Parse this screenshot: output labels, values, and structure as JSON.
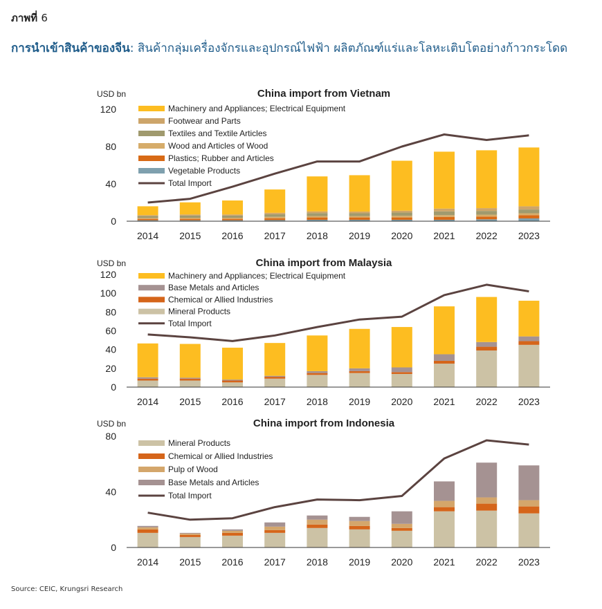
{
  "figure_label": {
    "prefix": "ภาพที่",
    "number": "6"
  },
  "headline": {
    "bold": "การนำเข้าสินค้าของจีน",
    "rest": ": สินค้ากลุ่มเครื่องจักรและอุปกรณ์ไฟฟ้า ผลิตภัณฑ์แร่และโลหะเติบโตอย่างก้าวกระโดด"
  },
  "source": "Source: CEIC, Krungsri Research",
  "colors": {
    "machinery": "#FDBD21",
    "footwear": "#CDA56A",
    "textiles": "#A09A6E",
    "wood_articles": "#D6AC6A",
    "plastics": "#D86A16",
    "vegetable": "#7FA0AE",
    "base_metals": "#A59292",
    "chemical": "#D5651A",
    "mineral": "#CCC2A5",
    "pulp": "#D4A66B",
    "total_line": "#5B4340"
  },
  "chart_data": [
    {
      "type": "bar",
      "stacked": true,
      "title": "China import from Vietnam",
      "ylabel": "USD bn",
      "ylim": [
        0,
        120
      ],
      "yticks": [
        0,
        40,
        80,
        120
      ],
      "categories": [
        "2014",
        "2015",
        "2016",
        "2017",
        "2018",
        "2019",
        "2020",
        "2021",
        "2022",
        "2023"
      ],
      "legend_position": "top-left",
      "series": [
        {
          "name": "Vegetable Products",
          "color_key": "vegetable",
          "values": [
            1.0,
            1.0,
            1.0,
            1.2,
            1.5,
            1.5,
            1.5,
            1.5,
            2.0,
            3.0
          ]
        },
        {
          "name": "Plastics; Rubber and Articles",
          "color_key": "plastics",
          "values": [
            1.5,
            1.5,
            1.5,
            2.0,
            2.5,
            2.5,
            2.5,
            3.0,
            3.0,
            3.5
          ]
        },
        {
          "name": "Wood and Articles of Wood",
          "color_key": "wood_articles",
          "values": [
            1.0,
            1.2,
            1.2,
            1.5,
            1.5,
            1.5,
            1.8,
            2.0,
            2.0,
            2.0
          ]
        },
        {
          "name": "Textiles and Textile Articles",
          "color_key": "textiles",
          "values": [
            2.0,
            2.3,
            2.3,
            2.8,
            3.2,
            3.0,
            3.5,
            4.0,
            4.0,
            4.0
          ]
        },
        {
          "name": "Footwear and Parts",
          "color_key": "footwear",
          "values": [
            1.0,
            1.2,
            1.2,
            1.5,
            1.8,
            1.8,
            2.0,
            3.0,
            3.0,
            3.5
          ]
        },
        {
          "name": "Machinery and Appliances; Electrical Equipment",
          "color_key": "machinery",
          "values": [
            9.5,
            13.0,
            15.0,
            25.0,
            37.5,
            39.0,
            53.5,
            61.0,
            62.0,
            63.0
          ]
        }
      ],
      "line": {
        "name": "Total Import",
        "color_key": "total_line",
        "values": [
          20,
          24,
          37,
          51,
          64,
          64,
          80,
          93,
          87,
          92
        ]
      },
      "legend_order": [
        "Machinery and Appliances; Electrical Equipment",
        "Footwear and Parts",
        "Textiles and Textile Articles",
        "Wood and Articles of Wood",
        "Plastics; Rubber and Articles",
        "Vegetable Products",
        "Total Import"
      ]
    },
    {
      "type": "bar",
      "stacked": true,
      "title": "China import from Malaysia",
      "ylabel": "USD bn",
      "ylim": [
        0,
        120
      ],
      "yticks": [
        0,
        20,
        40,
        60,
        80,
        100,
        120
      ],
      "categories": [
        "2014",
        "2015",
        "2016",
        "2017",
        "2018",
        "2019",
        "2020",
        "2021",
        "2022",
        "2023"
      ],
      "legend_position": "top-left",
      "series": [
        {
          "name": "Mineral Products",
          "color_key": "mineral",
          "values": [
            7,
            7,
            5,
            9,
            13,
            15,
            14,
            25,
            39,
            45
          ]
        },
        {
          "name": "Chemical or  Allied Industries",
          "color_key": "chemical",
          "values": [
            2,
            2,
            2,
            2,
            2,
            2,
            2,
            3,
            4,
            4
          ]
        },
        {
          "name": "Base Metals and Articles",
          "color_key": "base_metals",
          "values": [
            1.5,
            1,
            1,
            1,
            2,
            3,
            5,
            7,
            5,
            5
          ]
        },
        {
          "name": "Machinery and Appliances; Electrical Equipment",
          "color_key": "machinery",
          "values": [
            36,
            36,
            34,
            35,
            38,
            42,
            43,
            51,
            48,
            38
          ]
        }
      ],
      "line": {
        "name": "Total Import",
        "color_key": "total_line",
        "values": [
          56,
          53,
          49,
          55,
          64,
          72,
          75,
          98,
          109,
          102
        ]
      },
      "legend_order": [
        "Machinery and Appliances; Electrical Equipment",
        "Base Metals and Articles",
        "Chemical or  Allied Industries",
        "Mineral Products",
        "Total Import"
      ]
    },
    {
      "type": "bar",
      "stacked": true,
      "title": "China import from Indonesia",
      "ylabel": "USD bn",
      "ylim": [
        0,
        80
      ],
      "yticks": [
        0,
        40,
        80
      ],
      "categories": [
        "2014",
        "2015",
        "2016",
        "2017",
        "2018",
        "2019",
        "2020",
        "2021",
        "2022",
        "2023"
      ],
      "legend_position": "top-left",
      "series": [
        {
          "name": "Mineral Products",
          "color_key": "mineral",
          "values": [
            10.5,
            7.5,
            8.5,
            10.5,
            14,
            13,
            12,
            26,
            26.5,
            24.5
          ]
        },
        {
          "name": "Chemical or  Allied Industries",
          "color_key": "chemical",
          "values": [
            2.5,
            1.5,
            2,
            2,
            2.5,
            2.5,
            2,
            3,
            5,
            5
          ]
        },
        {
          "name": "Pulp of Wood",
          "color_key": "pulp",
          "values": [
            1.5,
            1.0,
            1.5,
            2.5,
            3.5,
            3.5,
            3.0,
            4.5,
            4.5,
            4.5
          ]
        },
        {
          "name": "Base Metals and Articles",
          "color_key": "base_metals",
          "values": [
            1,
            0.5,
            1,
            3,
            3,
            3,
            9,
            14,
            25,
            25
          ]
        }
      ],
      "line": {
        "name": "Total Import",
        "color_key": "total_line",
        "values": [
          25,
          20,
          21,
          29,
          34.5,
          34,
          37,
          64,
          77,
          74
        ]
      },
      "legend_order": [
        "Mineral Products",
        "Chemical or  Allied Industries",
        "Pulp of Wood",
        "Base Metals and Articles",
        "Total Import"
      ]
    }
  ]
}
